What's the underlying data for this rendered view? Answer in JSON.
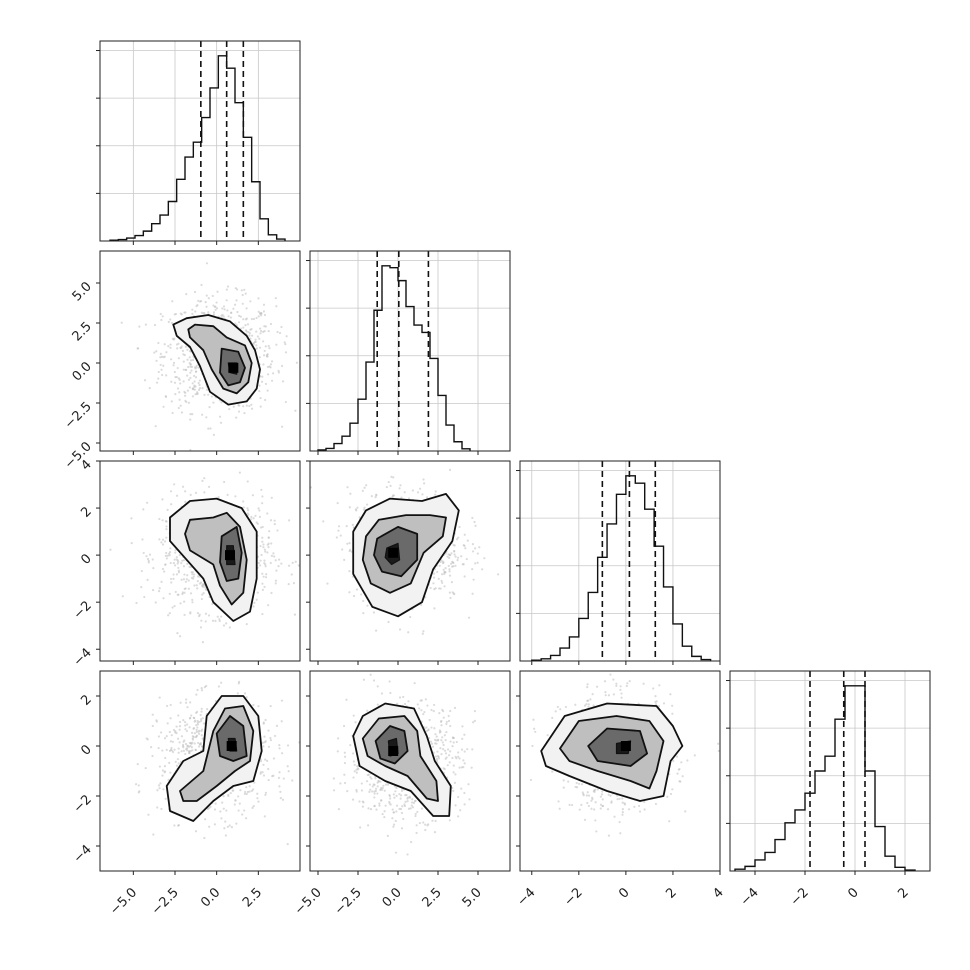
{
  "chart_data": {
    "type": "corner",
    "grid": true,
    "parameters": [
      {
        "range": [
          -7,
          5
        ],
        "ticks": [
          -5.0,
          -2.5,
          0.0,
          2.5
        ],
        "tick_labels": [
          "−5.0",
          "−2.5",
          "0.0",
          "2.5"
        ]
      },
      {
        "range": [
          -5.5,
          7
        ],
        "ticks": [
          -5.0,
          -2.5,
          0.0,
          2.5,
          5.0
        ],
        "tick_labels": [
          "−5.0",
          "−2.5",
          "0.0",
          "2.5",
          "5.0"
        ]
      },
      {
        "range": [
          -4.5,
          4
        ],
        "ticks": [
          -4,
          -2,
          0,
          2,
          4
        ],
        "tick_labels": [
          "−4",
          "−2",
          "0",
          "2",
          "4"
        ]
      },
      {
        "range": [
          -5,
          3
        ],
        "ticks": [
          -4,
          -2,
          0,
          2
        ],
        "tick_labels": [
          "−4",
          "−2",
          "0",
          "2"
        ]
      }
    ],
    "histograms": [
      {
        "edges": [
          -6.4,
          -5.9,
          -5.4,
          -4.9,
          -4.4,
          -3.9,
          -3.4,
          -2.9,
          -2.4,
          -1.9,
          -1.4,
          -0.9,
          -0.4,
          0.1,
          0.6,
          1.1,
          1.6,
          2.1,
          2.6,
          3.1,
          3.6,
          4.1
        ],
        "counts": [
          3,
          6,
          12,
          22,
          40,
          70,
          105,
          160,
          250,
          340,
          400,
          500,
          620,
          750,
          700,
          560,
          420,
          240,
          90,
          25,
          8
        ],
        "quantiles": [
          -0.95,
          0.6,
          1.6
        ]
      },
      {
        "edges": [
          -5,
          -4.5,
          -4,
          -3.5,
          -3,
          -2.5,
          -2,
          -1.5,
          -1,
          -0.5,
          0,
          0.5,
          1,
          1.5,
          2,
          2.5,
          3,
          3.5,
          4,
          4.5
        ],
        "counts": [
          6,
          14,
          40,
          80,
          150,
          280,
          480,
          760,
          1000,
          990,
          920,
          780,
          680,
          640,
          500,
          300,
          140,
          50,
          12
        ],
        "quantiles": [
          -1.3,
          0.05,
          1.9
        ]
      },
      {
        "edges": [
          -4,
          -3.6,
          -3.2,
          -2.8,
          -2.4,
          -2.0,
          -1.6,
          -1.2,
          -0.8,
          -0.4,
          0.0,
          0.4,
          0.8,
          1.2,
          1.6,
          2.0,
          2.4,
          2.8,
          3.2,
          3.6
        ],
        "counts": [
          4,
          12,
          30,
          70,
          130,
          230,
          370,
          560,
          740,
          900,
          1000,
          960,
          820,
          620,
          400,
          200,
          80,
          25,
          8
        ],
        "quantiles": [
          -1.0,
          0.15,
          1.25
        ]
      },
      {
        "edges": [
          -4.8,
          -4.4,
          -4.0,
          -3.6,
          -3.2,
          -2.8,
          -2.4,
          -2.0,
          -1.6,
          -1.2,
          -0.8,
          -0.4,
          0.0,
          0.4,
          0.8,
          1.2,
          1.6,
          2.0,
          2.4
        ],
        "counts": [
          10,
          25,
          60,
          100,
          170,
          260,
          330,
          420,
          540,
          620,
          820,
          1000,
          1000,
          540,
          240,
          80,
          20,
          5
        ],
        "quantiles": [
          -1.8,
          -0.45,
          0.4
        ]
      }
    ],
    "pairs": [
      {
        "row": 1,
        "col": 0,
        "density_peak": [
          1.0,
          -0.3
        ],
        "levels": [
          [
            [
              -1.8,
              2.8
            ],
            [
              -0.5,
              3.0
            ],
            [
              0.8,
              2.6
            ],
            [
              1.8,
              1.7
            ],
            [
              2.3,
              0.8
            ],
            [
              2.6,
              -0.4
            ],
            [
              2.4,
              -1.6
            ],
            [
              1.8,
              -2.4
            ],
            [
              0.7,
              -2.6
            ],
            [
              -0.4,
              -1.8
            ],
            [
              -1.0,
              -0.2
            ],
            [
              -1.6,
              1.0
            ],
            [
              -2.4,
              1.7
            ],
            [
              -2.6,
              2.4
            ]
          ],
          [
            [
              -1.3,
              2.4
            ],
            [
              -0.2,
              2.3
            ],
            [
              0.6,
              1.6
            ],
            [
              1.7,
              1.1
            ],
            [
              2.1,
              0.0
            ],
            [
              1.9,
              -1.2
            ],
            [
              1.2,
              -1.9
            ],
            [
              0.4,
              -1.6
            ],
            [
              -0.3,
              -0.4
            ],
            [
              -0.8,
              0.8
            ],
            [
              -1.6,
              1.6
            ],
            [
              -1.7,
              2.1
            ]
          ],
          [
            [
              0.3,
              0.9
            ],
            [
              1.3,
              0.7
            ],
            [
              1.7,
              -0.3
            ],
            [
              1.4,
              -1.2
            ],
            [
              0.7,
              -1.4
            ],
            [
              0.2,
              -0.6
            ]
          ],
          [
            [
              0.7,
              0.0
            ],
            [
              1.2,
              0.0
            ],
            [
              1.2,
              -0.7
            ],
            [
              0.8,
              -0.6
            ]
          ]
        ]
      },
      {
        "row": 2,
        "col": 0,
        "density_peak": [
          0.8,
          0.0
        ],
        "levels": [
          [
            [
              -2.8,
              1.6
            ],
            [
              -1.6,
              2.3
            ],
            [
              0.0,
              2.4
            ],
            [
              1.5,
              2.0
            ],
            [
              2.4,
              1.0
            ],
            [
              2.4,
              -1.0
            ],
            [
              2.0,
              -2.4
            ],
            [
              1.0,
              -2.8
            ],
            [
              -0.2,
              -2.0
            ],
            [
              -0.8,
              -1.0
            ],
            [
              -1.8,
              -0.2
            ],
            [
              -2.8,
              0.6
            ]
          ],
          [
            [
              -1.6,
              1.5
            ],
            [
              -0.2,
              1.6
            ],
            [
              0.6,
              1.8
            ],
            [
              1.4,
              1.2
            ],
            [
              1.8,
              -0.2
            ],
            [
              1.6,
              -1.6
            ],
            [
              0.9,
              -2.1
            ],
            [
              0.2,
              -1.3
            ],
            [
              -0.2,
              -0.4
            ],
            [
              -1.6,
              0.2
            ],
            [
              -1.9,
              0.9
            ]
          ],
          [
            [
              0.3,
              0.8
            ],
            [
              1.2,
              1.2
            ],
            [
              1.5,
              0.1
            ],
            [
              1.3,
              -1.0
            ],
            [
              0.6,
              -1.1
            ],
            [
              0.2,
              -0.3
            ]
          ],
          [
            [
              0.6,
              0.4
            ],
            [
              1.0,
              0.4
            ],
            [
              1.1,
              -0.4
            ],
            [
              0.6,
              -0.4
            ]
          ]
        ]
      },
      {
        "row": 2,
        "col": 1,
        "density_peak": [
          -0.3,
          0.1
        ],
        "levels": [
          [
            [
              -2.8,
              1.0
            ],
            [
              -2.0,
              1.9
            ],
            [
              -0.5,
              2.4
            ],
            [
              1.5,
              2.3
            ],
            [
              3.0,
              2.6
            ],
            [
              3.8,
              1.9
            ],
            [
              3.4,
              0.6
            ],
            [
              2.2,
              -0.6
            ],
            [
              1.5,
              -2.0
            ],
            [
              0.0,
              -2.6
            ],
            [
              -1.6,
              -2.2
            ],
            [
              -2.8,
              -0.8
            ]
          ],
          [
            [
              -2.0,
              0.8
            ],
            [
              -1.2,
              1.5
            ],
            [
              0.5,
              1.7
            ],
            [
              2.0,
              1.7
            ],
            [
              3.0,
              1.6
            ],
            [
              2.8,
              0.8
            ],
            [
              1.6,
              0.1
            ],
            [
              0.8,
              -1.2
            ],
            [
              -0.5,
              -1.6
            ],
            [
              -1.7,
              -1.2
            ],
            [
              -2.2,
              -0.2
            ]
          ],
          [
            [
              -1.3,
              0.7
            ],
            [
              0.0,
              1.2
            ],
            [
              1.2,
              0.9
            ],
            [
              1.2,
              -0.2
            ],
            [
              0.2,
              -0.9
            ],
            [
              -1.0,
              -0.7
            ],
            [
              -1.5,
              0.0
            ]
          ],
          [
            [
              -0.7,
              0.3
            ],
            [
              0.0,
              0.5
            ],
            [
              0.1,
              -0.2
            ],
            [
              -0.4,
              -0.4
            ],
            [
              -0.8,
              -0.1
            ]
          ]
        ]
      },
      {
        "row": 3,
        "col": 0,
        "density_peak": [
          0.9,
          0.0
        ],
        "levels": [
          [
            [
              -3.0,
              -1.6
            ],
            [
              -2.0,
              -0.6
            ],
            [
              -0.8,
              -0.2
            ],
            [
              -0.6,
              1.2
            ],
            [
              0.3,
              2.0
            ],
            [
              1.6,
              2.0
            ],
            [
              2.5,
              1.2
            ],
            [
              2.7,
              -0.2
            ],
            [
              2.2,
              -1.4
            ],
            [
              1.0,
              -1.6
            ],
            [
              -0.2,
              -2.2
            ],
            [
              -1.4,
              -3.0
            ],
            [
              -2.8,
              -2.6
            ]
          ],
          [
            [
              -2.2,
              -1.8
            ],
            [
              -0.8,
              -1.0
            ],
            [
              -0.2,
              0.6
            ],
            [
              0.5,
              1.5
            ],
            [
              1.6,
              1.6
            ],
            [
              2.2,
              0.6
            ],
            [
              2.0,
              -0.6
            ],
            [
              1.1,
              -1.0
            ],
            [
              0.0,
              -1.6
            ],
            [
              -1.2,
              -2.2
            ],
            [
              -2.0,
              -2.2
            ]
          ],
          [
            [
              0.0,
              0.5
            ],
            [
              0.8,
              1.2
            ],
            [
              1.6,
              0.8
            ],
            [
              1.8,
              -0.4
            ],
            [
              1.0,
              -0.6
            ],
            [
              0.2,
              -0.4
            ]
          ],
          [
            [
              0.7,
              0.3
            ],
            [
              1.1,
              0.3
            ],
            [
              1.2,
              -0.2
            ],
            [
              0.8,
              -0.2
            ]
          ]
        ]
      },
      {
        "row": 3,
        "col": 1,
        "density_peak": [
          -0.3,
          -0.2
        ],
        "levels": [
          [
            [
              -2.8,
              0.4
            ],
            [
              -2.2,
              1.2
            ],
            [
              -0.8,
              1.7
            ],
            [
              1.0,
              1.5
            ],
            [
              1.8,
              0.4
            ],
            [
              2.3,
              -0.6
            ],
            [
              3.3,
              -1.6
            ],
            [
              3.2,
              -2.8
            ],
            [
              2.2,
              -2.8
            ],
            [
              0.8,
              -1.8
            ],
            [
              -0.8,
              -1.4
            ],
            [
              -2.4,
              -0.8
            ]
          ],
          [
            [
              -2.2,
              0.3
            ],
            [
              -1.2,
              1.1
            ],
            [
              0.4,
              1.2
            ],
            [
              1.2,
              0.6
            ],
            [
              1.4,
              -0.4
            ],
            [
              2.4,
              -1.4
            ],
            [
              2.5,
              -2.2
            ],
            [
              1.8,
              -2.1
            ],
            [
              0.6,
              -1.2
            ],
            [
              -0.8,
              -0.8
            ],
            [
              -1.9,
              -0.4
            ]
          ],
          [
            [
              -1.4,
              0.2
            ],
            [
              -0.5,
              0.8
            ],
            [
              0.4,
              0.6
            ],
            [
              0.6,
              -0.2
            ],
            [
              -0.2,
              -0.7
            ],
            [
              -1.1,
              -0.5
            ]
          ],
          [
            [
              -0.6,
              0.2
            ],
            [
              -0.1,
              0.3
            ],
            [
              0.0,
              -0.3
            ],
            [
              -0.5,
              -0.4
            ]
          ]
        ]
      },
      {
        "row": 3,
        "col": 2,
        "density_peak": [
          0.0,
          0.0
        ],
        "levels": [
          [
            [
              -3.6,
              -0.2
            ],
            [
              -2.6,
              1.2
            ],
            [
              -0.8,
              1.7
            ],
            [
              1.3,
              1.6
            ],
            [
              2.0,
              0.8
            ],
            [
              2.4,
              0.0
            ],
            [
              1.9,
              -0.6
            ],
            [
              1.6,
              -2.0
            ],
            [
              0.6,
              -2.2
            ],
            [
              -0.8,
              -1.8
            ],
            [
              -2.4,
              -1.2
            ],
            [
              -3.4,
              -0.8
            ]
          ],
          [
            [
              -2.8,
              -0.1
            ],
            [
              -2.0,
              1.0
            ],
            [
              -0.4,
              1.2
            ],
            [
              1.0,
              1.0
            ],
            [
              1.6,
              0.2
            ],
            [
              1.3,
              -1.0
            ],
            [
              1.0,
              -1.7
            ],
            [
              0.2,
              -1.4
            ],
            [
              -1.2,
              -1.0
            ],
            [
              -2.4,
              -0.6
            ]
          ],
          [
            [
              -1.6,
              0.0
            ],
            [
              -0.8,
              0.7
            ],
            [
              0.6,
              0.6
            ],
            [
              0.9,
              -0.3
            ],
            [
              0.2,
              -0.8
            ],
            [
              -1.2,
              -0.6
            ]
          ],
          [
            [
              -0.4,
              0.1
            ],
            [
              0.2,
              0.2
            ],
            [
              0.1,
              -0.3
            ],
            [
              -0.4,
              -0.3
            ]
          ]
        ]
      }
    ]
  }
}
